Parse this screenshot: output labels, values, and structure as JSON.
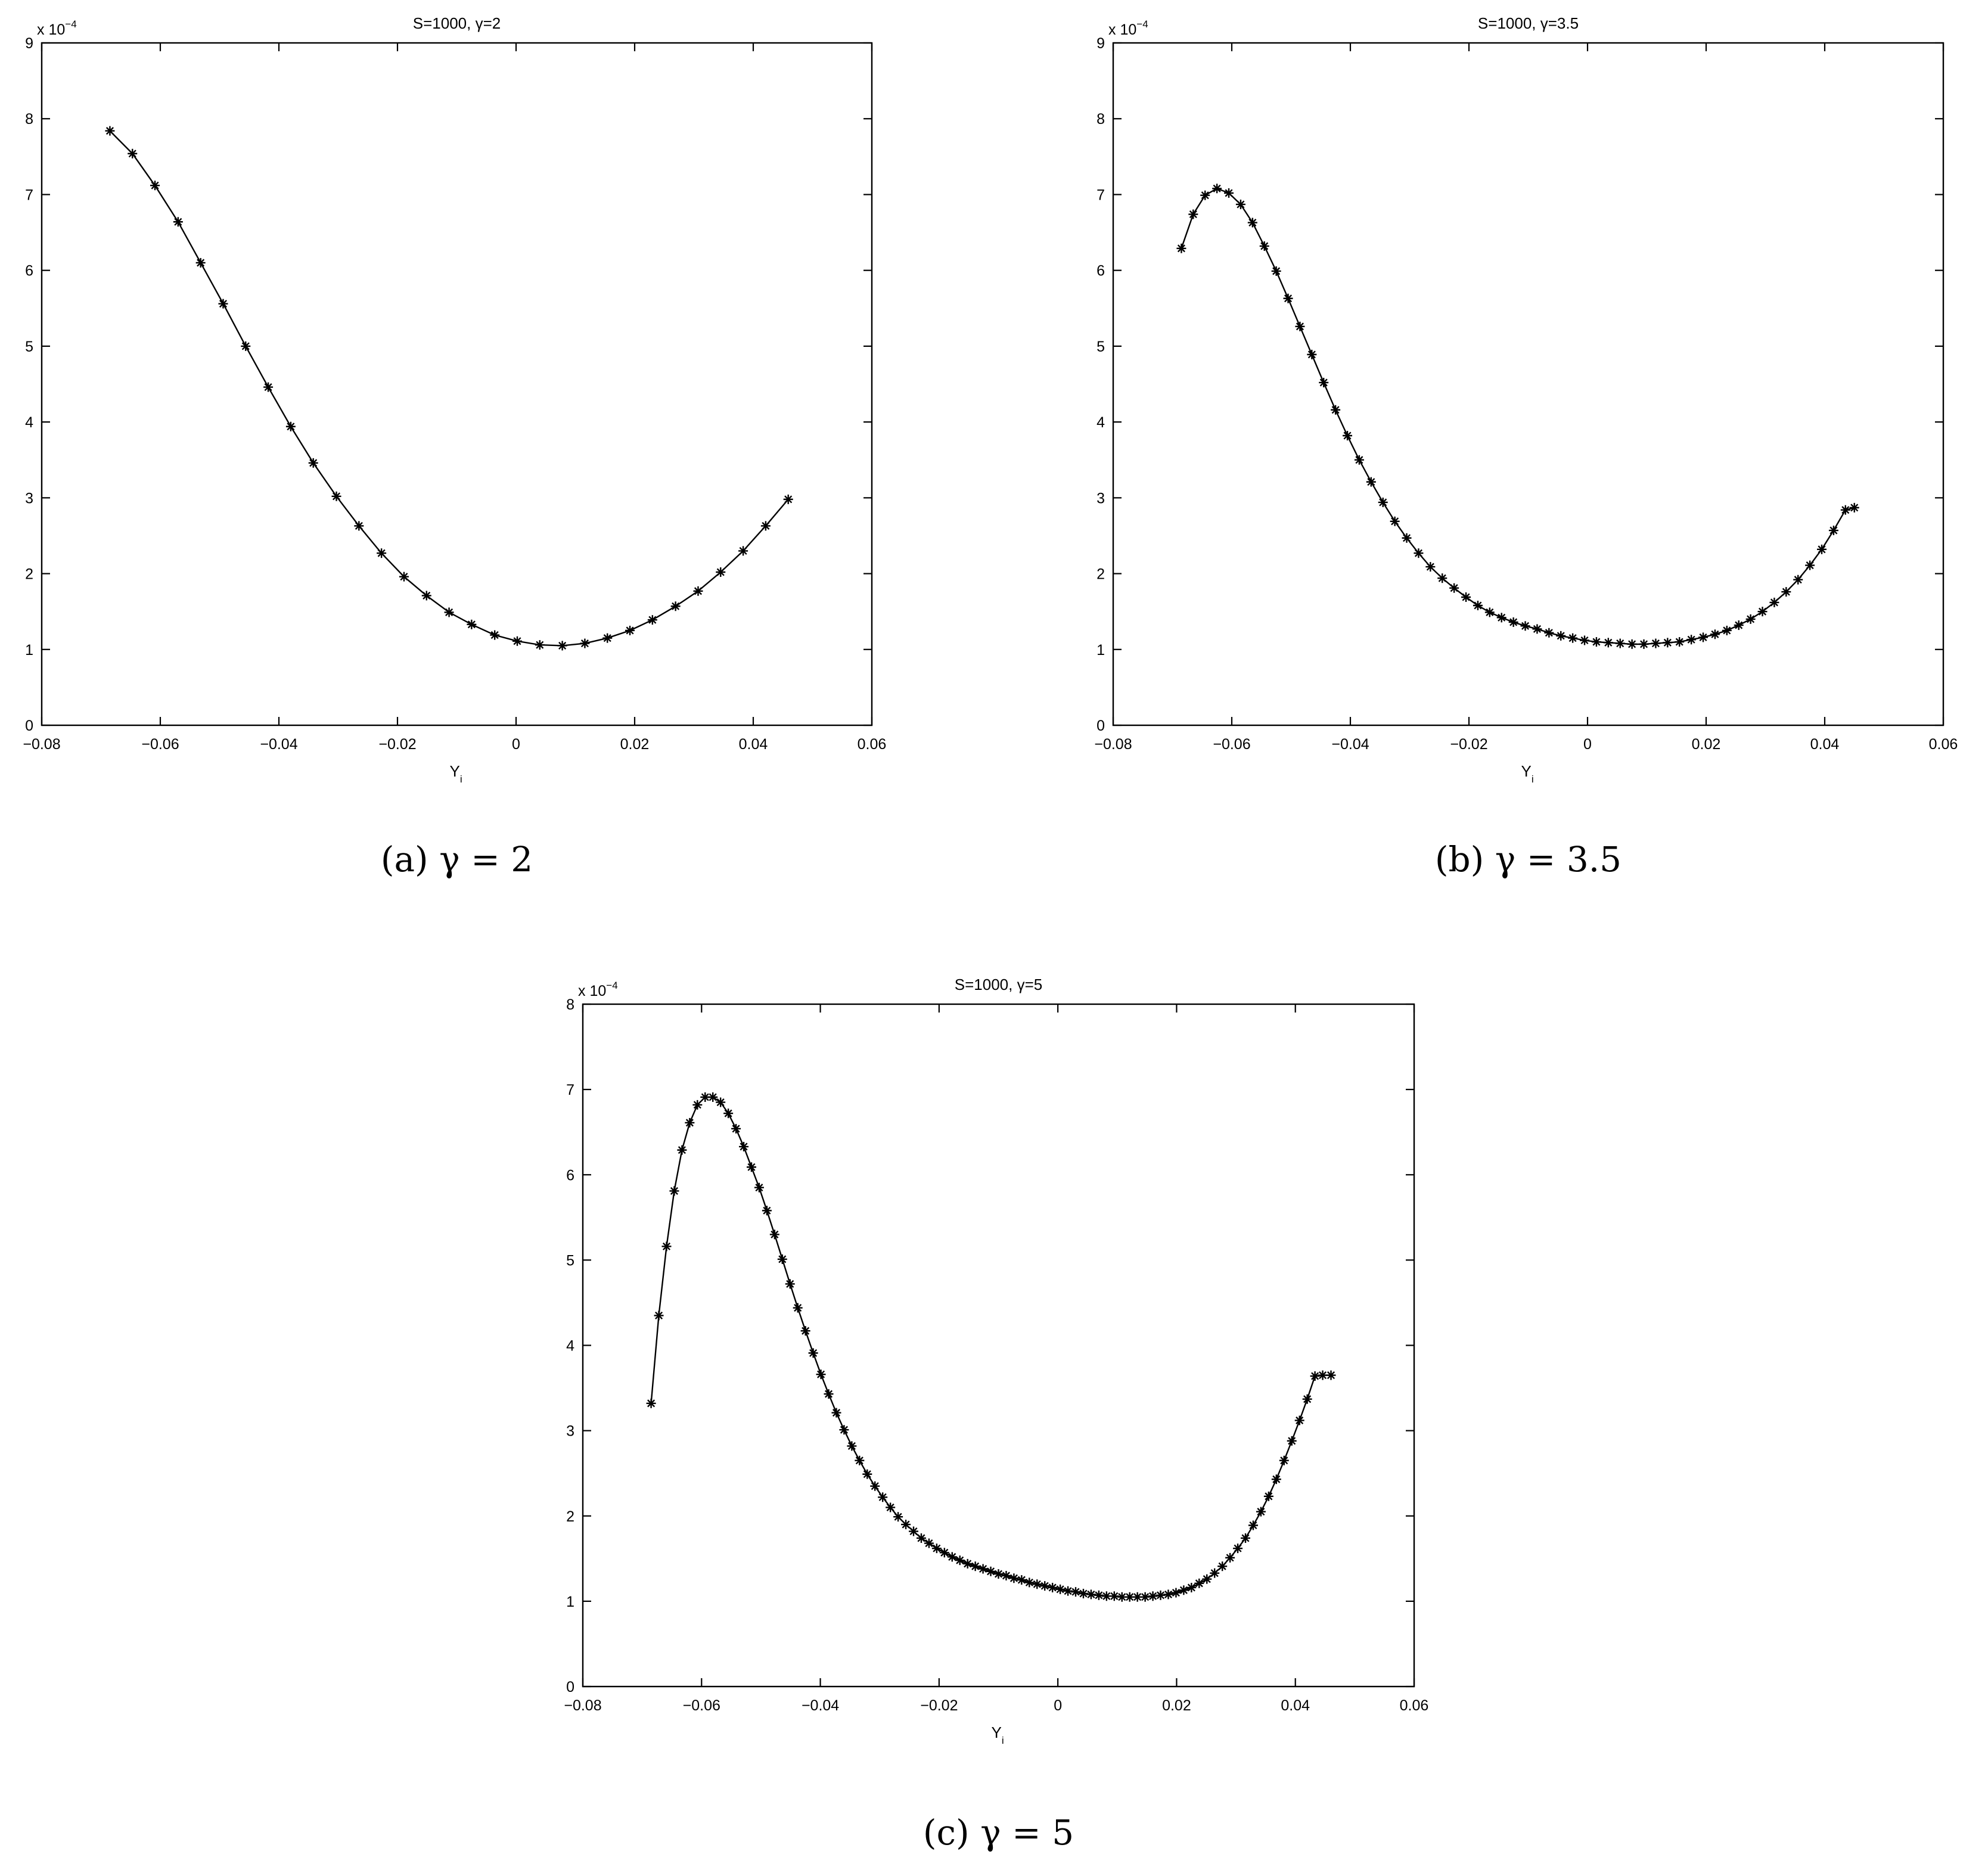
{
  "chart_data": [
    {
      "id": "a",
      "type": "line",
      "title": "S=1000,   γ=2",
      "caption": "(a)  γ = 2",
      "xlabel": "Y",
      "xlabel_sub": "i",
      "ylabel": "",
      "y_exponent": "x 10",
      "y_exponent_power": "−4",
      "xlim": [
        -0.08,
        0.06
      ],
      "ylim": [
        0,
        9
      ],
      "xticks": [
        "−0.08",
        "−0.06",
        "−0.04",
        "−0.02",
        "0",
        "0.02",
        "0.04",
        "0.06"
      ],
      "yticks": [
        "0",
        "1",
        "2",
        "3",
        "4",
        "5",
        "6",
        "7",
        "8",
        "9"
      ],
      "marker": "asterisk",
      "grid": false,
      "x": [
        -0.0685,
        -0.0647,
        -0.0609,
        -0.057,
        -0.0532,
        -0.0494,
        -0.0456,
        -0.0418,
        -0.038,
        -0.0342,
        -0.0303,
        -0.0265,
        -0.0227,
        -0.0189,
        -0.0151,
        -0.0113,
        -0.0075,
        -0.0036,
        0.0002,
        0.004,
        0.0078,
        0.0116,
        0.0154,
        0.0192,
        0.023,
        0.0269,
        0.0307,
        0.0345,
        0.0383,
        0.0421,
        0.0459
      ],
      "y": [
        7.84,
        7.54,
        7.12,
        6.64,
        6.1,
        5.56,
        5.0,
        4.46,
        3.94,
        3.46,
        3.02,
        2.63,
        2.27,
        1.96,
        1.71,
        1.49,
        1.33,
        1.19,
        1.11,
        1.06,
        1.05,
        1.08,
        1.15,
        1.25,
        1.39,
        1.57,
        1.77,
        2.02,
        2.3,
        2.63,
        2.98
      ]
    },
    {
      "id": "b",
      "type": "line",
      "title": "S=1000,   γ=3.5",
      "caption": "(b)  γ = 3.5",
      "xlabel": "Y",
      "xlabel_sub": "i",
      "ylabel": "",
      "y_exponent": "x 10",
      "y_exponent_power": "−4",
      "xlim": [
        -0.08,
        0.06
      ],
      "ylim": [
        0,
        9
      ],
      "xticks": [
        "−0.08",
        "−0.06",
        "−0.04",
        "−0.02",
        "0",
        "0.02",
        "0.04",
        "0.06"
      ],
      "yticks": [
        "0",
        "1",
        "2",
        "3",
        "4",
        "5",
        "6",
        "7",
        "8",
        "9"
      ],
      "marker": "asterisk",
      "grid": false,
      "x": [
        -0.0685,
        -0.0665,
        -0.0645,
        -0.0625,
        -0.0605,
        -0.0585,
        -0.0565,
        -0.0545,
        -0.0525,
        -0.0505,
        -0.0485,
        -0.0465,
        -0.0445,
        -0.0425,
        -0.0405,
        -0.0385,
        -0.0365,
        -0.0345,
        -0.0325,
        -0.0305,
        -0.0285,
        -0.0265,
        -0.0245,
        -0.0225,
        -0.0205,
        -0.0185,
        -0.0165,
        -0.0145,
        -0.0125,
        -0.0105,
        -0.0085,
        -0.0065,
        -0.0045,
        -0.0025,
        -0.0005,
        0.0015,
        0.0035,
        0.0055,
        0.0075,
        0.0095,
        0.0115,
        0.0135,
        0.0155,
        0.0175,
        0.0195,
        0.0215,
        0.0235,
        0.0255,
        0.0275,
        0.0295,
        0.0315,
        0.0335,
        0.0355,
        0.0375,
        0.0395,
        0.0415,
        0.0435,
        0.045
      ],
      "y": [
        6.29,
        6.74,
        6.99,
        7.08,
        7.02,
        6.87,
        6.63,
        6.32,
        5.99,
        5.63,
        5.26,
        4.89,
        4.52,
        4.16,
        3.82,
        3.5,
        3.21,
        2.94,
        2.69,
        2.47,
        2.27,
        2.09,
        1.94,
        1.81,
        1.69,
        1.58,
        1.49,
        1.42,
        1.36,
        1.31,
        1.27,
        1.22,
        1.18,
        1.15,
        1.12,
        1.1,
        1.09,
        1.08,
        1.07,
        1.07,
        1.08,
        1.09,
        1.1,
        1.13,
        1.16,
        1.2,
        1.25,
        1.32,
        1.4,
        1.5,
        1.62,
        1.76,
        1.92,
        2.11,
        2.32,
        2.57,
        2.84,
        2.87
      ]
    },
    {
      "id": "c",
      "type": "line",
      "title": "S=1000,   γ=5",
      "caption": "(c)  γ = 5",
      "xlabel": "Y",
      "xlabel_sub": "i",
      "ylabel": "",
      "y_exponent": "x 10",
      "y_exponent_power": "−4",
      "xlim": [
        -0.08,
        0.06
      ],
      "ylim": [
        0,
        8
      ],
      "xticks": [
        "−0.08",
        "−0.06",
        "−0.04",
        "−0.02",
        "0",
        "0.02",
        "0.04",
        "0.06"
      ],
      "yticks": [
        "0",
        "1",
        "2",
        "3",
        "4",
        "5",
        "6",
        "7",
        "8"
      ],
      "marker": "asterisk",
      "grid": false,
      "x": [
        -0.0685,
        -0.0672,
        -0.0659,
        -0.0646,
        -0.0633,
        -0.062,
        -0.0607,
        -0.0594,
        -0.0581,
        -0.0568,
        -0.0555,
        -0.0542,
        -0.0529,
        -0.0516,
        -0.0503,
        -0.049,
        -0.0477,
        -0.0464,
        -0.0451,
        -0.0438,
        -0.0425,
        -0.0412,
        -0.0399,
        -0.0386,
        -0.0373,
        -0.036,
        -0.0347,
        -0.0334,
        -0.0321,
        -0.0308,
        -0.0295,
        -0.0282,
        -0.0269,
        -0.0256,
        -0.0243,
        -0.023,
        -0.0217,
        -0.0204,
        -0.0191,
        -0.0178,
        -0.0165,
        -0.0152,
        -0.0139,
        -0.0126,
        -0.0113,
        -0.01,
        -0.0087,
        -0.0074,
        -0.0061,
        -0.0048,
        -0.0035,
        -0.0022,
        -0.0009,
        0.0004,
        0.0017,
        0.003,
        0.0043,
        0.0056,
        0.0069,
        0.0082,
        0.0095,
        0.0108,
        0.0121,
        0.0134,
        0.0147,
        0.016,
        0.0173,
        0.0186,
        0.0199,
        0.0212,
        0.0225,
        0.0238,
        0.0251,
        0.0264,
        0.0277,
        0.029,
        0.0303,
        0.0316,
        0.0329,
        0.0342,
        0.0355,
        0.0368,
        0.0381,
        0.0394,
        0.0407,
        0.042,
        0.0433,
        0.0446,
        0.046
      ],
      "y": [
        3.32,
        4.35,
        5.16,
        5.81,
        6.29,
        6.61,
        6.82,
        6.91,
        6.91,
        6.85,
        6.72,
        6.54,
        6.33,
        6.09,
        5.85,
        5.58,
        5.3,
        5.01,
        4.72,
        4.44,
        4.17,
        3.91,
        3.66,
        3.43,
        3.21,
        3.01,
        2.82,
        2.65,
        2.49,
        2.35,
        2.22,
        2.1,
        1.99,
        1.9,
        1.82,
        1.74,
        1.68,
        1.62,
        1.57,
        1.52,
        1.48,
        1.44,
        1.41,
        1.38,
        1.35,
        1.32,
        1.3,
        1.27,
        1.25,
        1.22,
        1.2,
        1.18,
        1.16,
        1.14,
        1.12,
        1.11,
        1.09,
        1.08,
        1.07,
        1.06,
        1.06,
        1.05,
        1.05,
        1.05,
        1.05,
        1.06,
        1.07,
        1.08,
        1.1,
        1.13,
        1.16,
        1.21,
        1.26,
        1.33,
        1.41,
        1.51,
        1.62,
        1.74,
        1.89,
        2.05,
        2.23,
        2.43,
        2.65,
        2.88,
        3.12,
        3.37,
        3.64,
        3.65,
        3.65
      ]
    }
  ]
}
